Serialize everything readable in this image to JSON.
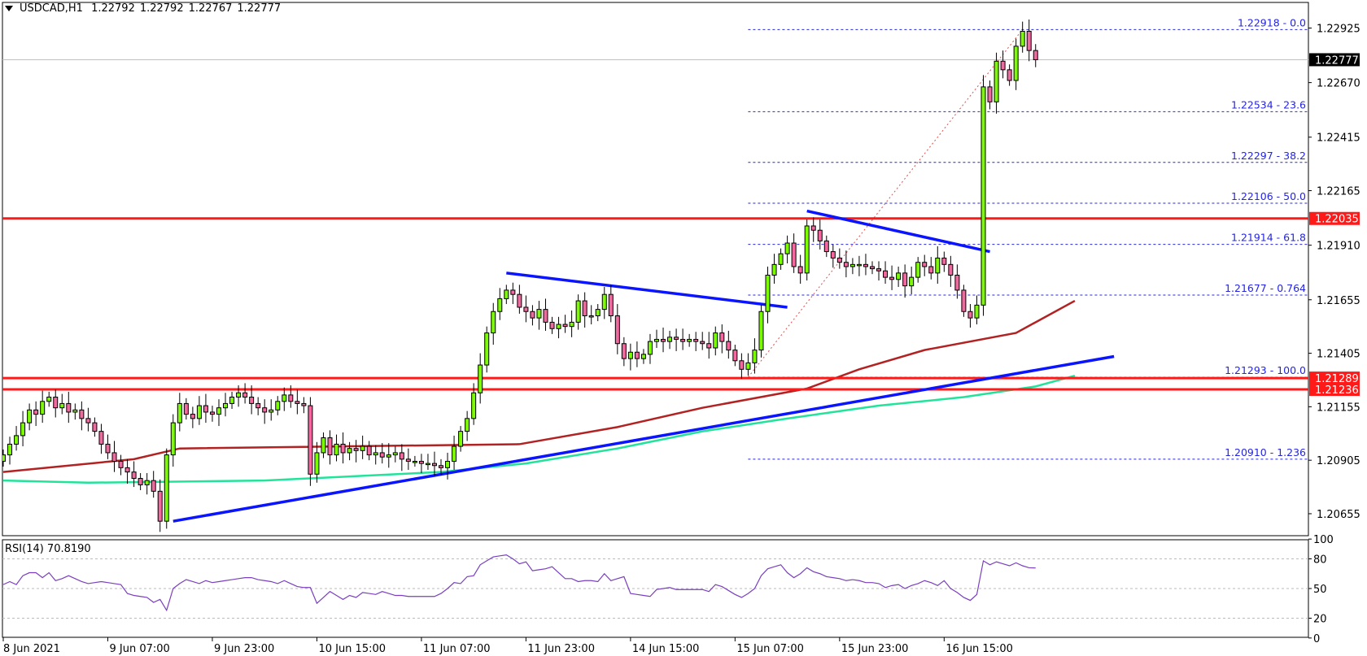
{
  "header": {
    "symbol": "USDCAD,H1",
    "open": "1.22792",
    "high": "1.22792",
    "low": "1.22767",
    "close": "1.22777"
  },
  "rsi_header": {
    "label": "RSI(14) 70.8190"
  },
  "colors": {
    "bull": "#7cfc00",
    "bear": "#f4679f",
    "support_resistance": "#ff1a1a",
    "trendline": "#0a14ff",
    "fib": "#2525e0",
    "ma_fast": "#b22222",
    "ma_slow": "#22e39a",
    "rsi": "#7a3fbf"
  },
  "chart_data": [
    {
      "type": "candlestick",
      "symbol": "USDCAD",
      "timeframe": "H1",
      "price_axis": {
        "ticks": [
          "1.22925",
          "1.22670",
          "1.22415",
          "1.22165",
          "1.21910",
          "1.21655",
          "1.21405",
          "1.21155",
          "1.20905",
          "1.20655"
        ]
      },
      "time_axis": {
        "labels": [
          "8 Jun 2021",
          "9 Jun 07:00",
          "9 Jun 23:00",
          "10 Jun 15:00",
          "11 Jun 07:00",
          "11 Jun 23:00",
          "14 Jun 15:00",
          "15 Jun 07:00",
          "15 Jun 23:00",
          "16 Jun 15:00"
        ]
      },
      "close": [
        1.2093,
        1.2098,
        1.2102,
        1.2108,
        1.2114,
        1.2112,
        1.2118,
        1.212,
        1.2115,
        1.2117,
        1.2113,
        1.2114,
        1.211,
        1.2108,
        1.2104,
        1.2098,
        1.2094,
        1.209,
        1.2087,
        1.2085,
        1.2082,
        1.2079,
        1.2081,
        1.2076,
        1.2062,
        1.2093,
        1.2108,
        1.2117,
        1.2112,
        1.211,
        1.2116,
        1.2113,
        1.2112,
        1.2115,
        1.2117,
        1.212,
        1.2122,
        1.212,
        1.2117,
        1.2115,
        1.2113,
        1.2114,
        1.2118,
        1.2121,
        1.2118,
        1.2117,
        1.2116,
        1.2084,
        1.2094,
        1.2101,
        1.2093,
        1.2098,
        1.2094,
        1.2096,
        1.2095,
        1.2097,
        1.2093,
        1.2094,
        1.2092,
        1.2093,
        1.2094,
        1.2091,
        1.209,
        1.209,
        1.2089,
        1.2089,
        1.2088,
        1.2087,
        1.209,
        1.2097,
        1.2104,
        1.211,
        1.2122,
        1.2135,
        1.215,
        1.216,
        1.2166,
        1.217,
        1.2168,
        1.2162,
        1.216,
        1.2157,
        1.2161,
        1.2155,
        1.2152,
        1.2154,
        1.2153,
        1.2155,
        1.2165,
        1.2158,
        1.2158,
        1.2161,
        1.2168,
        1.2158,
        1.2145,
        1.2138,
        1.2141,
        1.2138,
        1.214,
        1.2146,
        1.2147,
        1.2146,
        1.2148,
        1.2147,
        1.2146,
        1.2147,
        1.2146,
        1.2145,
        1.2143,
        1.215,
        1.2146,
        1.2142,
        1.2137,
        1.2133,
        1.2136,
        1.2142,
        1.216,
        1.2177,
        1.2182,
        1.2187,
        1.2192,
        1.2181,
        1.2178,
        1.22,
        1.2198,
        1.2193,
        1.2188,
        1.2185,
        1.2183,
        1.2181,
        1.2182,
        1.2182,
        1.2181,
        1.218,
        1.2179,
        1.2176,
        1.2175,
        1.2178,
        1.2172,
        1.2176,
        1.2183,
        1.2181,
        1.2178,
        1.2185,
        1.2182,
        1.2177,
        1.217,
        1.216,
        1.2157,
        1.2163,
        1.2265,
        1.2258,
        1.2277,
        1.2273,
        1.2268,
        1.2284,
        1.2291,
        1.2282,
        1.22777
      ],
      "moving_averages": [
        {
          "points": [
            [
              0,
              1.2085
            ],
            [
              20,
              1.2091
            ],
            [
              27,
              1.2096
            ],
            [
              79,
              1.2098
            ],
            [
              94,
              1.2106
            ],
            [
              107,
              1.2115
            ],
            [
              123,
              1.2124
            ],
            [
              131,
              1.2133
            ],
            [
              141,
              1.2142
            ],
            [
              155,
              1.215
            ],
            [
              164,
              1.2165
            ]
          ]
        },
        {
          "points": [
            [
              0,
              1.2081
            ],
            [
              13,
              1.208
            ],
            [
              40,
              1.2081
            ],
            [
              67,
              1.2085
            ],
            [
              80,
              1.2089
            ],
            [
              94,
              1.2096
            ],
            [
              107,
              1.2104
            ],
            [
              120,
              1.211
            ],
            [
              134,
              1.2116
            ],
            [
              147,
              1.212
            ],
            [
              158,
              1.2125
            ],
            [
              164,
              1.213
            ]
          ]
        }
      ],
      "horizontal_levels": [
        "1.22035",
        "1.21289",
        "1.21236"
      ],
      "current_price": "1.22777",
      "trendlines": [
        {
          "from": [
            26,
            1.2062
          ],
          "to": [
            170,
            1.2139
          ]
        },
        {
          "from": [
            77,
            1.2178
          ],
          "to": [
            120,
            1.2162
          ]
        },
        {
          "from": [
            123,
            1.2207
          ],
          "to": [
            151,
            1.2188
          ]
        }
      ],
      "fibonacci": {
        "from": [
          114,
          1.21293
        ],
        "to": [
          156,
          1.22918
        ],
        "levels": [
          {
            "price": 1.22918,
            "label": "1.22918 - 0.0"
          },
          {
            "price": 1.22534,
            "label": "1.22534 -  23.6"
          },
          {
            "price": 1.22297,
            "label": "1.22297 - 38.2"
          },
          {
            "price": 1.22106,
            "label": "1.22106 - 50.0"
          },
          {
            "price": 1.21914,
            "label": "1.21914 -  61.8"
          },
          {
            "price": 1.21677,
            "label": "1.21677 - 0.764"
          },
          {
            "price": 1.21293,
            "label": "1.21293 - 100.0"
          },
          {
            "price": 1.2091,
            "label": "1.20910 - 1.236"
          }
        ]
      }
    },
    {
      "type": "line",
      "indicator": "RSI(14)",
      "ylim": [
        0,
        100
      ],
      "levels": [
        80,
        50,
        20
      ],
      "axis_ticks": [
        "100",
        "80",
        "50",
        "20",
        "0"
      ],
      "values": [
        54,
        57,
        54,
        63,
        66,
        66,
        61,
        66,
        58,
        60,
        63,
        60,
        57,
        55,
        56,
        57,
        56,
        55,
        54,
        45,
        43,
        42,
        41,
        36,
        39,
        28,
        50,
        55,
        59,
        57,
        55,
        58,
        56,
        57,
        58,
        59,
        60,
        61,
        61,
        59,
        58,
        57,
        55,
        58,
        55,
        52,
        51,
        51,
        35,
        41,
        47,
        43,
        39,
        43,
        41,
        46,
        45,
        44,
        47,
        45,
        43,
        43,
        42,
        42,
        42,
        42,
        42,
        45,
        50,
        56,
        55,
        62,
        63,
        74,
        78,
        82,
        83,
        84,
        80,
        75,
        77,
        68,
        69,
        70,
        72,
        66,
        60,
        60,
        57,
        58,
        58,
        57,
        65,
        58,
        60,
        62,
        45,
        44,
        43,
        42,
        49,
        50,
        51,
        49,
        49,
        49,
        49,
        49,
        47,
        54,
        52,
        48,
        44,
        41,
        45,
        50,
        63,
        70,
        72,
        74,
        66,
        61,
        65,
        71,
        67,
        65,
        62,
        61,
        60,
        58,
        59,
        58,
        56,
        56,
        55,
        51,
        53,
        54,
        50,
        53,
        55,
        58,
        56,
        53,
        58,
        50,
        46,
        41,
        38,
        44,
        78,
        74,
        77,
        75,
        73,
        76,
        73,
        71,
        70.8
      ]
    }
  ]
}
